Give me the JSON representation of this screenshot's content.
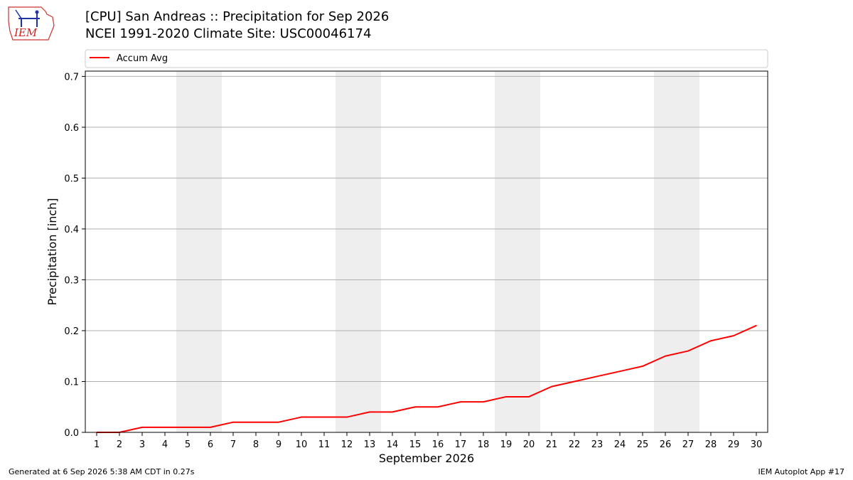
{
  "header": {
    "title": "[CPU] San Andreas :: Precipitation for Sep 2026",
    "subtitle": "NCEI 1991-2020 Climate Site: USC00046174",
    "logo_text": "IEM"
  },
  "footer": {
    "left": "Generated at 6 Sep 2026 5:38 AM CDT in 0.27s",
    "right": "IEM Autoplot App #17"
  },
  "chart_data": {
    "type": "line",
    "xlabel": "September 2026",
    "ylabel": "Precipitation [inch]",
    "x": [
      1,
      2,
      3,
      4,
      5,
      6,
      7,
      8,
      9,
      10,
      11,
      12,
      13,
      14,
      15,
      16,
      17,
      18,
      19,
      20,
      21,
      22,
      23,
      24,
      25,
      26,
      27,
      28,
      29,
      30
    ],
    "xticks": [
      "1",
      "2",
      "3",
      "4",
      "5",
      "6",
      "7",
      "8",
      "9",
      "10",
      "11",
      "12",
      "13",
      "14",
      "15",
      "16",
      "17",
      "18",
      "19",
      "20",
      "21",
      "22",
      "23",
      "24",
      "25",
      "26",
      "27",
      "28",
      "29",
      "30"
    ],
    "ylim": [
      0,
      0.7
    ],
    "yticks": [
      "0.0",
      "0.1",
      "0.2",
      "0.3",
      "0.4",
      "0.5",
      "0.6",
      "0.7"
    ],
    "grid": "horizontal",
    "legend_position": "top",
    "weekend_shading": [
      [
        5,
        6
      ],
      [
        12,
        13
      ],
      [
        19,
        20
      ],
      [
        26,
        27
      ]
    ],
    "shade_color": "#eeeeee",
    "series": [
      {
        "name": "Accum Avg",
        "color": "#ff0000",
        "values": [
          0.0,
          0.0,
          0.01,
          0.01,
          0.01,
          0.01,
          0.02,
          0.02,
          0.02,
          0.03,
          0.03,
          0.03,
          0.04,
          0.04,
          0.05,
          0.05,
          0.06,
          0.06,
          0.07,
          0.07,
          0.09,
          0.1,
          0.11,
          0.12,
          0.13,
          0.15,
          0.16,
          0.18,
          0.19,
          0.21
        ]
      }
    ]
  }
}
